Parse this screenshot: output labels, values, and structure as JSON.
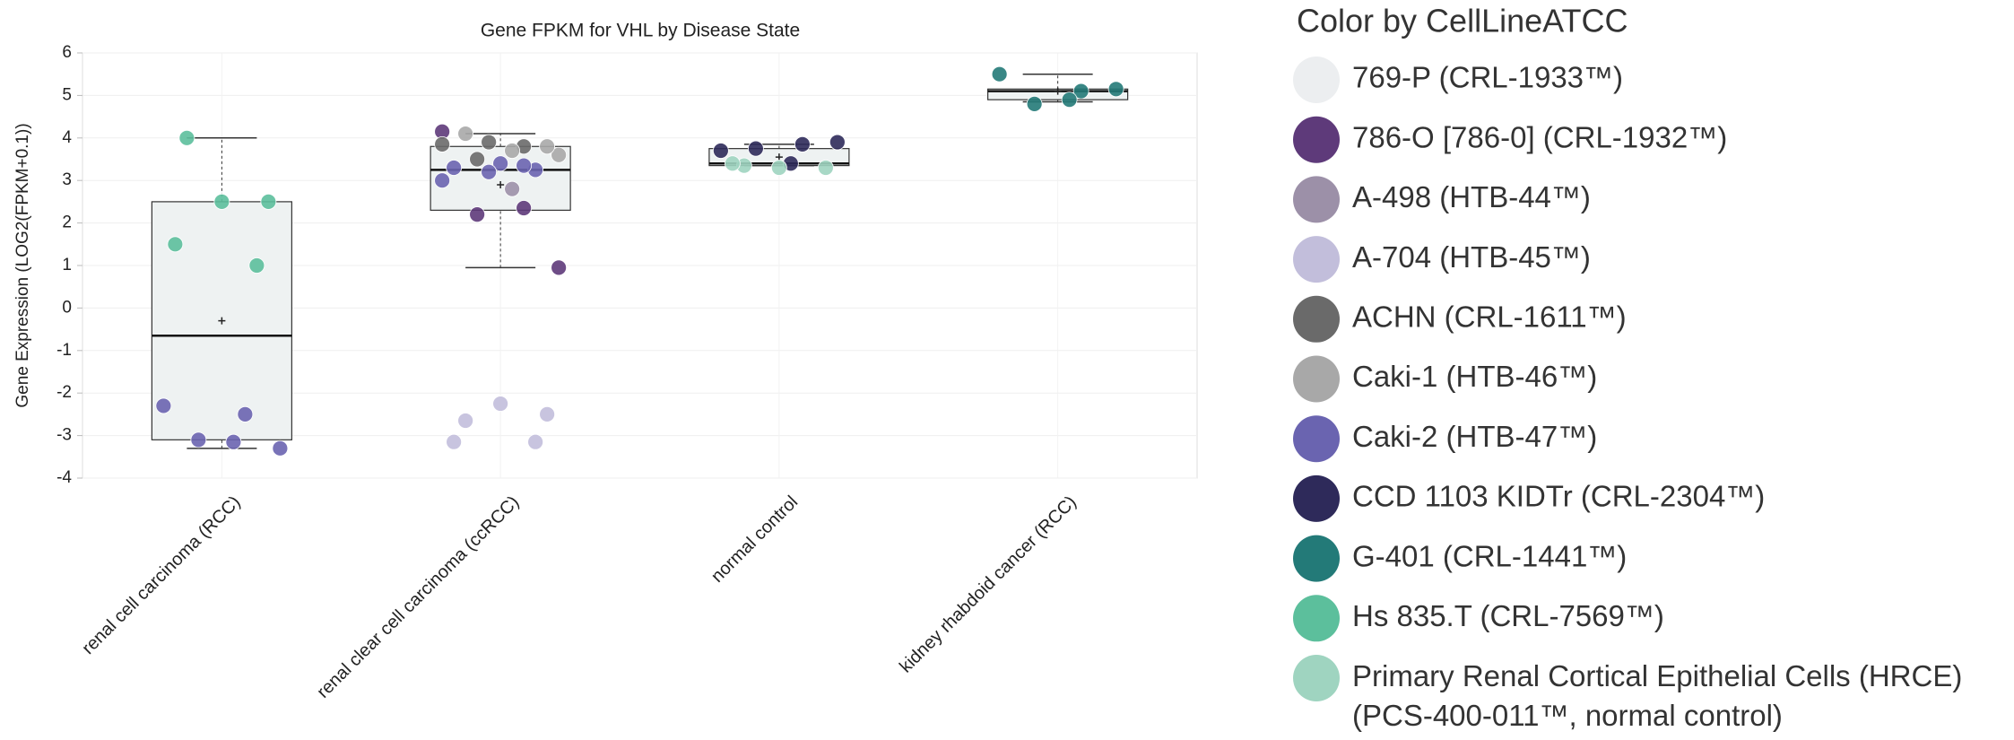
{
  "chart_data": {
    "type": "box",
    "title": "Gene FPKM for VHL by Disease State",
    "y_label": "Gene Expression (LOG2(FPKM+0.1))",
    "legend_title": "Color by CellLineATCC",
    "categories": [
      "renal cell carcinoma (RCC)",
      "renal clear cell carcinoma (ccRCC)",
      "normal control",
      "kidney rhabdoid cancer (RCC)"
    ],
    "boxes": [
      {
        "min": -3.3,
        "q1": -3.1,
        "median": -0.65,
        "q3": 2.5,
        "max": 4.0,
        "mean": -0.3
      },
      {
        "min": 0.95,
        "q1": 2.3,
        "median": 3.25,
        "q3": 3.8,
        "max": 4.1,
        "mean": 2.9
      },
      {
        "min": 3.35,
        "q1": 3.35,
        "median": 3.4,
        "q3": 3.75,
        "max": 3.85,
        "mean": 3.55
      },
      {
        "min": 4.85,
        "q1": 4.9,
        "median": 5.1,
        "q3": 5.15,
        "max": 5.5,
        "mean": 5.1
      }
    ],
    "box_color": "#eef2f2",
    "ylim": [
      -4,
      6
    ],
    "yticks": [
      -4,
      -3,
      -2,
      -1,
      0,
      1,
      2,
      3,
      4,
      5,
      6
    ],
    "grid": true,
    "series": [
      {
        "name": "769-P (CRL-1933™)",
        "color": "#eceef0",
        "categories": [],
        "values": []
      },
      {
        "name": "786-O [786-0] (CRL-1932™)",
        "color": "#5e3a7a",
        "categories": [
          "renal clear cell carcinoma (ccRCC)",
          "renal clear cell carcinoma (ccRCC)",
          "renal clear cell carcinoma (ccRCC)",
          "renal clear cell carcinoma (ccRCC)"
        ],
        "values": [
          4.15,
          2.35,
          2.2,
          0.95
        ]
      },
      {
        "name": "A-498 (HTB-44™)",
        "color": "#9c90a8",
        "categories": [
          "renal clear cell carcinoma (ccRCC)"
        ],
        "values": [
          2.8
        ]
      },
      {
        "name": "A-704 (HTB-45™)",
        "color": "#c2bedb",
        "categories": [
          "renal clear cell carcinoma (ccRCC)",
          "renal clear cell carcinoma (ccRCC)",
          "renal clear cell carcinoma (ccRCC)",
          "renal clear cell carcinoma (ccRCC)",
          "renal clear cell carcinoma (ccRCC)"
        ],
        "values": [
          -2.65,
          -2.5,
          -2.25,
          -3.15,
          -3.15
        ]
      },
      {
        "name": "ACHN (CRL-1611™)",
        "color": "#6a6a6a",
        "categories": [
          "renal clear cell carcinoma (ccRCC)",
          "renal clear cell carcinoma (ccRCC)",
          "renal clear cell carcinoma (ccRCC)",
          "renal clear cell carcinoma (ccRCC)"
        ],
        "values": [
          3.9,
          3.85,
          3.8,
          3.5
        ]
      },
      {
        "name": "Caki-1 (HTB-46™)",
        "color": "#a8a8a8",
        "categories": [
          "renal clear cell carcinoma (ccRCC)",
          "renal clear cell carcinoma (ccRCC)",
          "renal clear cell carcinoma (ccRCC)",
          "renal clear cell carcinoma (ccRCC)"
        ],
        "values": [
          3.6,
          3.7,
          4.1,
          3.8
        ]
      },
      {
        "name": "Caki-2 (HTB-47™)",
        "color": "#6a64b0",
        "categories": [
          "renal cell carcinoma (RCC)",
          "renal cell carcinoma (RCC)",
          "renal cell carcinoma (RCC)",
          "renal cell carcinoma (RCC)",
          "renal cell carcinoma (RCC)",
          "renal clear cell carcinoma (ccRCC)",
          "renal clear cell carcinoma (ccRCC)",
          "renal clear cell carcinoma (ccRCC)",
          "renal clear cell carcinoma (ccRCC)",
          "renal clear cell carcinoma (ccRCC)",
          "renal clear cell carcinoma (ccRCC)"
        ],
        "values": [
          -2.3,
          -2.5,
          -3.1,
          -3.3,
          -3.15,
          3.4,
          3.3,
          3.25,
          3.2,
          3.0,
          3.35
        ]
      },
      {
        "name": "CCD 1103 KIDTr (CRL-2304™)",
        "color": "#2e2a5a",
        "categories": [
          "normal control",
          "normal control",
          "normal control",
          "normal control",
          "normal control"
        ],
        "values": [
          3.7,
          3.85,
          3.75,
          3.9,
          3.4
        ]
      },
      {
        "name": "G-401 (CRL-1441™)",
        "color": "#237a78",
        "categories": [
          "kidney rhabdoid cancer (RCC)",
          "kidney rhabdoid cancer (RCC)",
          "kidney rhabdoid cancer (RCC)",
          "kidney rhabdoid cancer (RCC)",
          "kidney rhabdoid cancer (RCC)"
        ],
        "values": [
          5.5,
          5.1,
          4.8,
          5.15,
          4.9
        ]
      },
      {
        "name": "Hs 835.T (CRL-7569™)",
        "color": "#5cbf9c",
        "categories": [
          "renal cell carcinoma (RCC)",
          "renal cell carcinoma (RCC)",
          "renal cell carcinoma (RCC)",
          "renal cell carcinoma (RCC)",
          "renal cell carcinoma (RCC)"
        ],
        "values": [
          4.0,
          2.5,
          2.5,
          1.5,
          1.0
        ]
      },
      {
        "name": "Primary Renal Cortical Epithelial Cells (HRCE) (PCS-400-011™, normal control)",
        "color": "#9fd4c0",
        "categories": [
          "normal control",
          "normal control",
          "normal control",
          "normal control"
        ],
        "values": [
          3.35,
          3.3,
          3.3,
          3.4
        ]
      }
    ]
  }
}
